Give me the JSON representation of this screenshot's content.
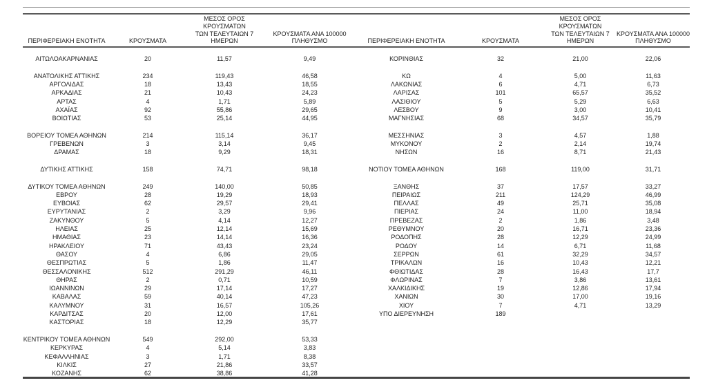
{
  "colors": {
    "background": "#ffffff",
    "text": "#1f1f1f",
    "rule_light": "#8a8a8a",
    "rule_dark": "#5a5a5a",
    "rule_bottom": "#454545"
  },
  "table": {
    "header": {
      "region": "ΠΕΡΙΦΕΡΕΙΑΚΗ ΕΝΟΤΗΤΑ",
      "cases": "ΚΡΟΥΣΜΑΤΑ",
      "avg7": "ΜΕΣΟΣ ΟΡΟΣ ΚΡΟΥΣΜΑΤΩΝ\nΤΩΝ ΤΕΛΕΥΤΑΙΩΝ 7\nΗΜΕΡΩΝ",
      "per100k": "ΚΡΟΥΣΜΑΤΑ ΑΝΑ 100000\nΠΛΗΘΥΣΜΟ"
    },
    "rows": [
      {
        "left": [
          "ΑΙΤΩΛΟΑΚΑΡΝΑΝΙΑΣ",
          "20",
          "11,57",
          "9,49"
        ],
        "right": [
          "ΚΟΡΙΝΘΙΑΣ",
          "32",
          "21,00",
          "22,06"
        ]
      },
      {
        "left": [
          "",
          "",
          "",
          ""
        ],
        "right": [
          "",
          "",
          "",
          ""
        ]
      },
      {
        "left": [
          "ΑΝΑΤΟΛΙΚΗΣ ΑΤΤΙΚΗΣ",
          "234",
          "119,43",
          "46,58"
        ],
        "right": [
          "ΚΩ",
          "4",
          "5,00",
          "11,63"
        ]
      },
      {
        "left": [
          "ΑΡΓΟΛΙΔΑΣ",
          "18",
          "13,43",
          "18,55"
        ],
        "right": [
          "ΛΑΚΩΝΙΑΣ",
          "6",
          "4,71",
          "6,73"
        ]
      },
      {
        "left": [
          "ΑΡΚΑΔΙΑΣ",
          "21",
          "10,43",
          "24,23"
        ],
        "right": [
          "ΛΑΡΙΣΑΣ",
          "101",
          "65,57",
          "35,52"
        ]
      },
      {
        "left": [
          "ΑΡΤΑΣ",
          "4",
          "1,71",
          "5,89"
        ],
        "right": [
          "ΛΑΣΙΘΙΟΥ",
          "5",
          "5,29",
          "6,63"
        ]
      },
      {
        "left": [
          "ΑΧΑΪΑΣ",
          "92",
          "55,86",
          "29,65"
        ],
        "right": [
          "ΛΕΣΒΟΥ",
          "9",
          "3,00",
          "10,41"
        ]
      },
      {
        "left": [
          "ΒΟΙΩΤΙΑΣ",
          "53",
          "25,14",
          "44,95"
        ],
        "right": [
          "ΜΑΓΝΗΣΙΑΣ",
          "68",
          "34,57",
          "35,79"
        ]
      },
      {
        "left": [
          "",
          "",
          "",
          ""
        ],
        "right": [
          "",
          "",
          "",
          ""
        ]
      },
      {
        "left": [
          "ΒΟΡΕΙΟΥ ΤΟΜΕΑ ΑΘΗΝΩΝ",
          "214",
          "115,14",
          "36,17"
        ],
        "right": [
          "ΜΕΣΣΗΝΙΑΣ",
          "3",
          "4,57",
          "1,88"
        ]
      },
      {
        "left": [
          "ΓΡΕΒΕΝΩΝ",
          "3",
          "3,14",
          "9,45"
        ],
        "right": [
          "ΜΥΚΟΝΟΥ",
          "2",
          "2,14",
          "19,74"
        ]
      },
      {
        "left": [
          "ΔΡΑΜΑΣ",
          "18",
          "9,29",
          "18,31"
        ],
        "right": [
          "ΝΗΣΩΝ",
          "16",
          "8,71",
          "21,43"
        ]
      },
      {
        "left": [
          "",
          "",
          "",
          ""
        ],
        "right": [
          "",
          "",
          "",
          ""
        ]
      },
      {
        "left": [
          "ΔΥΤΙΚΗΣ ΑΤΤΙΚΗΣ",
          "158",
          "74,71",
          "98,18"
        ],
        "right": [
          "ΝΟΤΙΟΥ ΤΟΜΕΑ ΑΘΗΝΩΝ",
          "168",
          "119,00",
          "31,71"
        ]
      },
      {
        "left": [
          "",
          "",
          "",
          ""
        ],
        "right": [
          "",
          "",
          "",
          ""
        ]
      },
      {
        "left": [
          "ΔΥΤΙΚΟΥ ΤΟΜΕΑ ΑΘΗΝΩΝ",
          "249",
          "140,00",
          "50,85"
        ],
        "right": [
          "ΞΑΝΘΗΣ",
          "37",
          "17,57",
          "33,27"
        ]
      },
      {
        "left": [
          "ΕΒΡΟΥ",
          "28",
          "19,29",
          "18,93"
        ],
        "right": [
          "ΠΕΙΡΑΙΩΣ",
          "211",
          "124,29",
          "46,99"
        ]
      },
      {
        "left": [
          "ΕΥΒΟΙΑΣ",
          "62",
          "29,57",
          "29,41"
        ],
        "right": [
          "ΠΕΛΛΑΣ",
          "49",
          "25,71",
          "35,08"
        ]
      },
      {
        "left": [
          "ΕΥΡΥΤΑΝΙΑΣ",
          "2",
          "3,29",
          "9,96"
        ],
        "right": [
          "ΠΙΕΡΙΑΣ",
          "24",
          "11,00",
          "18,94"
        ]
      },
      {
        "left": [
          "ΖΑΚΥΝΘΟΥ",
          "5",
          "4,14",
          "12,27"
        ],
        "right": [
          "ΠΡΕΒΕΖΑΣ",
          "2",
          "1,86",
          "3,48"
        ]
      },
      {
        "left": [
          "ΗΛΕΙΑΣ",
          "25",
          "12,14",
          "15,69"
        ],
        "right": [
          "ΡΕΘΥΜΝΟΥ",
          "20",
          "16,71",
          "23,36"
        ]
      },
      {
        "left": [
          "ΗΜΑΘΙΑΣ",
          "23",
          "14,14",
          "16,36"
        ],
        "right": [
          "ΡΟΔΟΠΗΣ",
          "28",
          "12,29",
          "24,99"
        ]
      },
      {
        "left": [
          "ΗΡΑΚΛΕΙΟΥ",
          "71",
          "43,43",
          "23,24"
        ],
        "right": [
          "ΡΟΔΟΥ",
          "14",
          "6,71",
          "11,68"
        ]
      },
      {
        "left": [
          "ΘΑΣΟΥ",
          "4",
          "6,86",
          "29,05"
        ],
        "right": [
          "ΣΕΡΡΩΝ",
          "61",
          "32,29",
          "34,57"
        ]
      },
      {
        "left": [
          "ΘΕΣΠΡΩΤΙΑΣ",
          "5",
          "1,86",
          "11,47"
        ],
        "right": [
          "ΤΡΙΚΑΛΩΝ",
          "16",
          "10,43",
          "12,21"
        ]
      },
      {
        "left": [
          "ΘΕΣΣΑΛΟΝΙΚΗΣ",
          "512",
          "291,29",
          "46,11"
        ],
        "right": [
          "ΦΘΙΩΤΙΔΑΣ",
          "28",
          "16,43",
          "17,7"
        ]
      },
      {
        "left": [
          "ΘΗΡΑΣ",
          "2",
          "0,71",
          "10,59"
        ],
        "right": [
          "ΦΛΩΡΙΝΑΣ",
          "7",
          "3,86",
          "13,61"
        ]
      },
      {
        "left": [
          "ΙΩΑΝΝΙΝΩΝ",
          "29",
          "17,14",
          "17,27"
        ],
        "right": [
          "ΧΑΛΚΙΔΙΚΗΣ",
          "19",
          "12,86",
          "17,94"
        ]
      },
      {
        "left": [
          "ΚΑΒΑΛΑΣ",
          "59",
          "40,14",
          "47,23"
        ],
        "right": [
          "ΧΑΝΙΩΝ",
          "30",
          "17,00",
          "19,16"
        ]
      },
      {
        "left": [
          "ΚΑΛΥΜΝΟΥ",
          "31",
          "16,57",
          "105,26"
        ],
        "right": [
          "ΧΙΟΥ",
          "7",
          "4,71",
          "13,29"
        ]
      },
      {
        "left": [
          "ΚΑΡΔΙΤΣΑΣ",
          "20",
          "12,00",
          "17,61"
        ],
        "right": [
          "ΥΠΟ ΔΙΕΡΕΥΝΗΣΗ",
          "189",
          "",
          ""
        ]
      },
      {
        "left": [
          "ΚΑΣΤΟΡΙΑΣ",
          "18",
          "12,29",
          "35,77"
        ],
        "right": [
          "",
          "",
          "",
          ""
        ]
      },
      {
        "left": [
          "",
          "",
          "",
          ""
        ],
        "right": [
          "",
          "",
          "",
          ""
        ]
      },
      {
        "left": [
          "ΚΕΝΤΡΙΚΟΥ ΤΟΜΕΑ ΑΘΗΝΩΝ",
          "549",
          "292,00",
          "53,33"
        ],
        "right": [
          "",
          "",
          "",
          ""
        ]
      },
      {
        "left": [
          "ΚΕΡΚΥΡΑΣ",
          "4",
          "5,14",
          "3,83"
        ],
        "right": [
          "",
          "",
          "",
          ""
        ]
      },
      {
        "left": [
          "ΚΕΦΑΛΛΗΝΙΑΣ",
          "3",
          "1,71",
          "8,38"
        ],
        "right": [
          "",
          "",
          "",
          ""
        ]
      },
      {
        "left": [
          "ΚΙΛΚΙΣ",
          "27",
          "21,86",
          "33,57"
        ],
        "right": [
          "",
          "",
          "",
          ""
        ]
      },
      {
        "left": [
          "ΚΟΖΑΝΗΣ",
          "62",
          "38,86",
          "41,28"
        ],
        "right": [
          "",
          "",
          "",
          ""
        ]
      }
    ]
  }
}
